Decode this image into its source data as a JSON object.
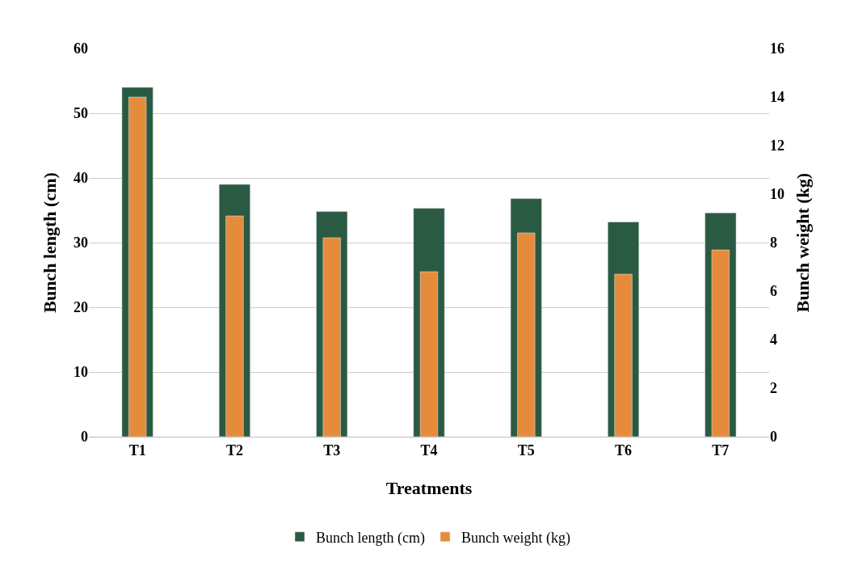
{
  "chart_data": {
    "type": "bar",
    "xlabel": "Treatments",
    "ylabel": "Bunch length (cm)",
    "y2label": "Bunch weight (kg)",
    "categories": [
      "T1",
      "T2",
      "T3",
      "T4",
      "T5",
      "T6",
      "T7"
    ],
    "series": [
      {
        "name": "Bunch length (cm)",
        "color": "#2b5a43",
        "values": [
          54.0,
          39.0,
          34.8,
          35.3,
          36.8,
          33.2,
          34.6
        ]
      },
      {
        "name": "Bunch weight (kg)",
        "color": "#e58c3c",
        "axis": "y2",
        "values": [
          14.0,
          9.1,
          8.2,
          6.8,
          8.4,
          6.7,
          7.7
        ]
      }
    ],
    "ylim": [
      0,
      60
    ],
    "yticks": [
      0,
      10,
      20,
      30,
      40,
      50,
      60
    ],
    "y2lim": [
      0,
      16
    ],
    "y2ticks": [
      0,
      2,
      4,
      6,
      8,
      10,
      12,
      14,
      16
    ],
    "grid": "y",
    "legend": "bottom"
  }
}
